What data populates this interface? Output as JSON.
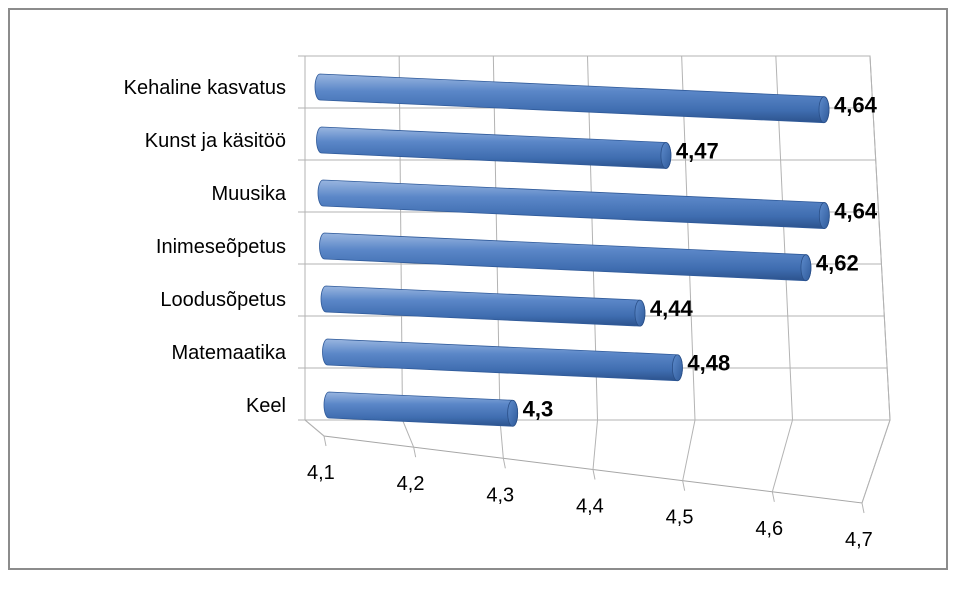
{
  "chart_data": {
    "type": "bar",
    "orientation": "horizontal",
    "style": "3d-cylinder",
    "categories": [
      "Kehaline kasvatus",
      "Kunst ja käsitöö",
      "Muusika",
      "Inimeseõpetus",
      "Loodusõpetus",
      "Matemaatika",
      "Keel"
    ],
    "values": [
      4.64,
      4.47,
      4.64,
      4.62,
      4.44,
      4.48,
      4.3
    ],
    "value_labels": [
      "4,64",
      "4,47",
      "4,64",
      "4,62",
      "4,44",
      "4,48",
      "4,3"
    ],
    "xlim": [
      4.1,
      4.7
    ],
    "xticks": [
      4.1,
      4.2,
      4.3,
      4.4,
      4.5,
      4.6,
      4.7
    ],
    "xtick_labels": [
      "4,1",
      "4,2",
      "4,3",
      "4,4",
      "4,5",
      "4,6",
      "4,7"
    ],
    "grid": true,
    "legend": "none",
    "bar_color": "#4f81bd"
  }
}
